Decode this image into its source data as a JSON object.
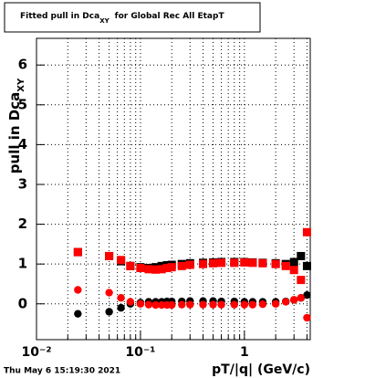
{
  "chart_data": {
    "type": "scatter",
    "title": {
      "main": "Fitted pull in Dca",
      "sub": "XY",
      "end": "for Global Rec All EtapT"
    },
    "y_label": {
      "main": "pull in Dca",
      "sub": "XY"
    },
    "x_label": "pT/|q| (GeV/c)",
    "footer": "Thu May  6 15:19:30 2021",
    "log_x": true,
    "grid": true,
    "xlim": [
      0.01,
      4.3
    ],
    "ylim": [
      -0.9,
      6.67
    ],
    "xticks": [
      {
        "value": 0.01,
        "label": "10⁻²"
      },
      {
        "value": 0.1,
        "label": "10⁻¹"
      },
      1
    ],
    "xminorticks": [
      0.02,
      0.03,
      0.04,
      0.05,
      0.06,
      0.07,
      0.08,
      0.09,
      0.2,
      0.3,
      0.4,
      0.5,
      0.6,
      0.7,
      0.8,
      0.9,
      2,
      3,
      4
    ],
    "yticks": [
      0,
      1,
      2,
      3,
      4,
      5,
      6
    ],
    "x": [
      0.025,
      0.05,
      0.065,
      0.08,
      0.1,
      0.12,
      0.14,
      0.16,
      0.18,
      0.2,
      0.25,
      0.3,
      0.4,
      0.5,
      0.6,
      0.8,
      1.0,
      1.2,
      1.5,
      2.0,
      2.5,
      3.0,
      3.5,
      4.0
    ],
    "series": [
      {
        "color": "#000000",
        "marker": "square",
        "values": [
          1.3,
          1.2,
          1.07,
          0.95,
          0.92,
          0.9,
          0.92,
          0.95,
          0.97,
          0.98,
          1.0,
          1.02,
          1.03,
          1.04,
          1.05,
          1.05,
          1.05,
          1.04,
          1.03,
          1.02,
          1.0,
          1.05,
          1.2,
          0.95
        ]
      },
      {
        "color": "#ff0000",
        "marker": "square",
        "values": [
          1.3,
          1.2,
          1.1,
          0.95,
          0.9,
          0.87,
          0.86,
          0.87,
          0.9,
          0.92,
          0.95,
          0.98,
          1.0,
          1.02,
          1.03,
          1.03,
          1.04,
          1.03,
          1.02,
          1.0,
          0.95,
          0.85,
          0.6,
          1.8
        ]
      },
      {
        "color": "#000000",
        "marker": "circle",
        "values": [
          -0.25,
          -0.2,
          -0.1,
          0.0,
          0.03,
          0.05,
          0.05,
          0.05,
          0.06,
          0.06,
          0.06,
          0.07,
          0.07,
          0.07,
          0.06,
          0.06,
          0.05,
          0.05,
          0.05,
          0.05,
          0.06,
          0.1,
          0.15,
          0.22
        ]
      },
      {
        "color": "#ff0000",
        "marker": "circle",
        "values": [
          0.35,
          0.28,
          0.15,
          0.05,
          0.0,
          -0.02,
          -0.03,
          -0.03,
          -0.03,
          -0.03,
          -0.02,
          -0.02,
          -0.02,
          -0.02,
          -0.02,
          -0.02,
          -0.02,
          -0.02,
          -0.01,
          0.0,
          0.05,
          0.1,
          0.15,
          -0.35
        ]
      }
    ]
  }
}
